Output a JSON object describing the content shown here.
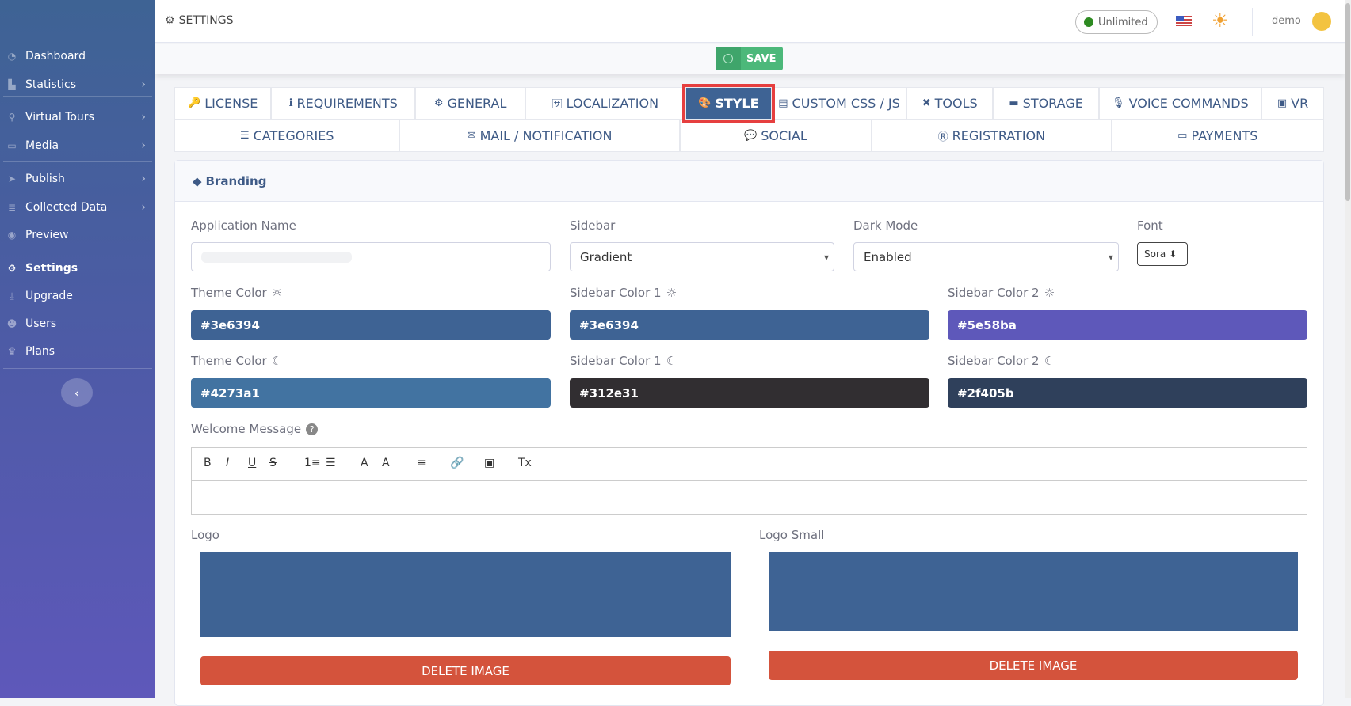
{
  "sidebar": {
    "items": [
      {
        "label": "Dashboard",
        "icon": "dashboard-icon",
        "glyph": "◔"
      },
      {
        "label": "Statistics",
        "icon": "chart-icon",
        "glyph": "▙",
        "chev": true
      },
      {
        "label": "Virtual Tours",
        "icon": "route-icon",
        "glyph": "⚲",
        "chev": true
      },
      {
        "label": "Media",
        "icon": "monitor-icon",
        "glyph": "▭",
        "chev": true
      },
      {
        "label": "Publish",
        "icon": "paper-plane-icon",
        "glyph": "➤",
        "chev": true
      },
      {
        "label": "Collected Data",
        "icon": "database-icon",
        "glyph": "≣",
        "chev": true
      },
      {
        "label": "Preview",
        "icon": "eye-icon",
        "glyph": "◉"
      },
      {
        "label": "Settings",
        "icon": "cogs-icon",
        "glyph": "⚙",
        "active": true
      },
      {
        "label": "Upgrade",
        "icon": "download-icon",
        "glyph": "⤓"
      },
      {
        "label": "Users",
        "icon": "users-icon",
        "glyph": "☻"
      },
      {
        "label": "Plans",
        "icon": "crown-icon",
        "glyph": "♛"
      }
    ]
  },
  "header": {
    "title": "SETTINGS",
    "plan": "Unlimited",
    "plan_color": "#2e8b22",
    "user": "demo"
  },
  "toolbar": {
    "save_label": "SAVE"
  },
  "tabs": {
    "row1": [
      {
        "label": "LICENSE",
        "glyph": "🔑"
      },
      {
        "label": "REQUIREMENTS",
        "glyph": "ℹ"
      },
      {
        "label": "GENERAL",
        "glyph": "⚙"
      },
      {
        "label": "LOCALIZATION",
        "glyph": "🈂"
      },
      {
        "label": "STYLE",
        "glyph": "🎨",
        "active": true
      },
      {
        "label": "CUSTOM CSS / JS",
        "glyph": "▤"
      },
      {
        "label": "TOOLS",
        "glyph": "✖"
      },
      {
        "label": "STORAGE",
        "glyph": "▬"
      },
      {
        "label": "VOICE COMMANDS",
        "glyph": "🎙"
      },
      {
        "label": "VR",
        "glyph": "▣"
      }
    ],
    "row2": [
      {
        "label": "CATEGORIES",
        "glyph": "☰"
      },
      {
        "label": "MAIL / NOTIFICATION",
        "glyph": "✉"
      },
      {
        "label": "SOCIAL",
        "glyph": "💬"
      },
      {
        "label": "REGISTRATION",
        "glyph": "Ⓡ"
      },
      {
        "label": "PAYMENTS",
        "glyph": "▭"
      }
    ]
  },
  "branding": {
    "title": "Branding",
    "app_name_label": "Application Name",
    "app_name_value": "",
    "sidebar_label": "Sidebar",
    "sidebar_value": "Gradient",
    "dark_mode_label": "Dark Mode",
    "dark_mode_value": "Enabled",
    "font_label": "Font",
    "font_value": "Sora",
    "colors": [
      {
        "label": "Theme Color",
        "mode": "light",
        "value": "#3e6394"
      },
      {
        "label": "Sidebar Color 1",
        "mode": "light",
        "value": "#3e6394"
      },
      {
        "label": "Sidebar Color 2",
        "mode": "light",
        "value": "#5e58ba"
      },
      {
        "label": "Theme Color",
        "mode": "dark",
        "value": "#4273a1"
      },
      {
        "label": "Sidebar Color 1",
        "mode": "dark",
        "value": "#312e31"
      },
      {
        "label": "Sidebar Color 2",
        "mode": "dark",
        "value": "#2f405b"
      }
    ],
    "welcome_label": "Welcome Message",
    "editor_tools": [
      "B",
      "I",
      "U",
      "S",
      "1≡",
      "☰",
      "A",
      "A",
      "≡",
      "🔗",
      "▣",
      "Tx"
    ],
    "logo_label": "Logo",
    "logo_small_label": "Logo Small",
    "delete_label": "DELETE IMAGE"
  }
}
